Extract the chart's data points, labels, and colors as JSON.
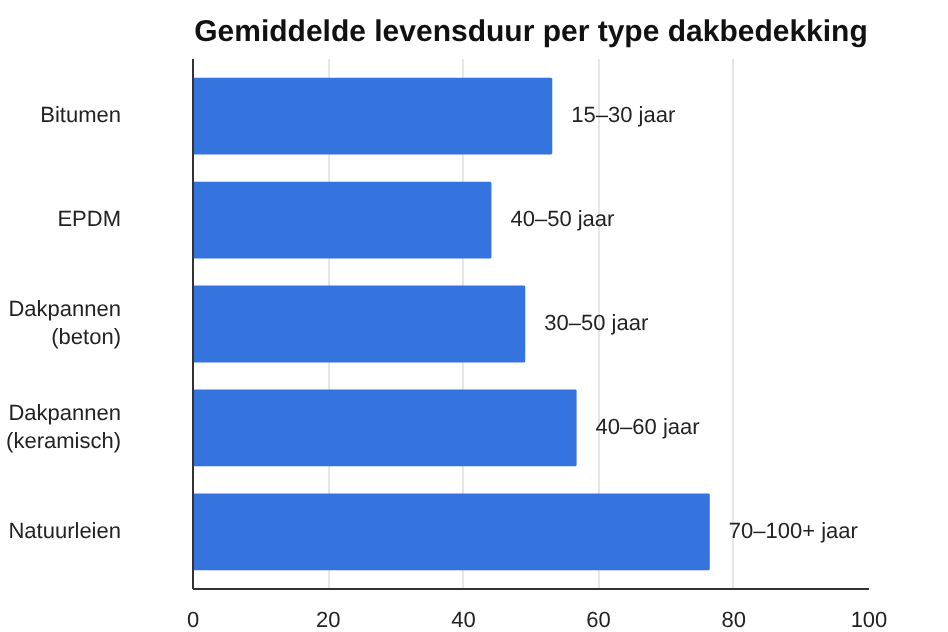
{
  "chart_data": {
    "type": "bar",
    "orientation": "horizontal",
    "title": "Gemiddelde levensduur per type dakbedekking",
    "categories": [
      "Bitumen",
      "EPDM",
      "Dakpannen (beton)",
      "Dakpannen (keramisch)",
      "Natuurleien"
    ],
    "values": [
      53,
      44,
      49,
      56.6,
      76.3
    ],
    "value_labels": [
      "15–30 jaar",
      "40–50 jaar",
      "30–50 jaar",
      "40–60 jaar",
      "70–100+ jaar"
    ],
    "color": "#3574de",
    "xlim": [
      0,
      100
    ],
    "xticks": [
      0,
      20,
      40,
      60,
      80,
      100
    ],
    "grid": "x"
  }
}
